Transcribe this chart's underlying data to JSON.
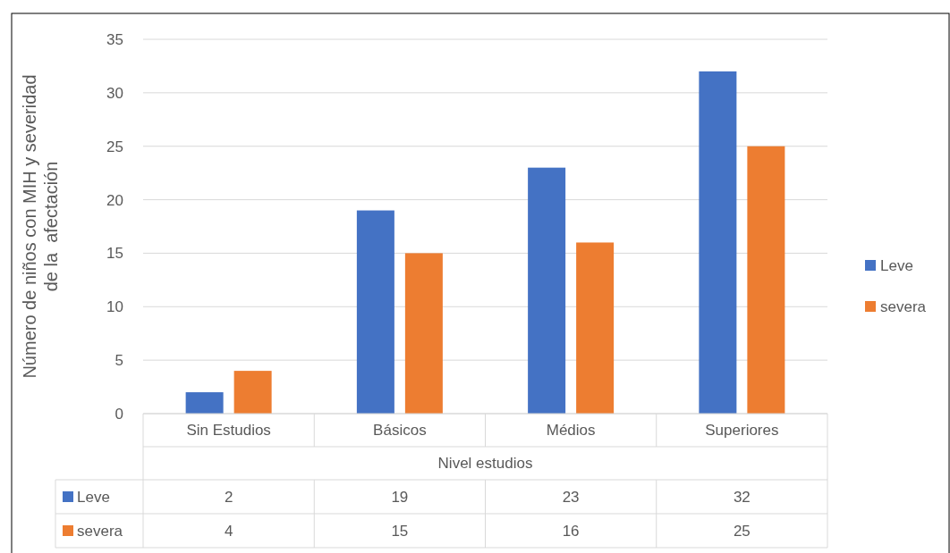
{
  "chart_data": {
    "type": "bar",
    "categories": [
      "Sin Estudios",
      "Básicos",
      "Médios",
      "Superiores"
    ],
    "series": [
      {
        "name": "Leve",
        "color": "#4472c4",
        "values": [
          2,
          19,
          23,
          32
        ]
      },
      {
        "name": "severa",
        "color": "#ed7d31",
        "values": [
          4,
          15,
          16,
          25
        ]
      }
    ],
    "xlabel": "Nivel estudios",
    "ylabel": "Número de niños con MIH y severidad\nde la  afectación",
    "ylim": [
      0,
      35
    ],
    "yticks": [
      0,
      5,
      10,
      15,
      20,
      25,
      30,
      35
    ],
    "grid": "y",
    "legend": "right",
    "data_labels": true
  }
}
